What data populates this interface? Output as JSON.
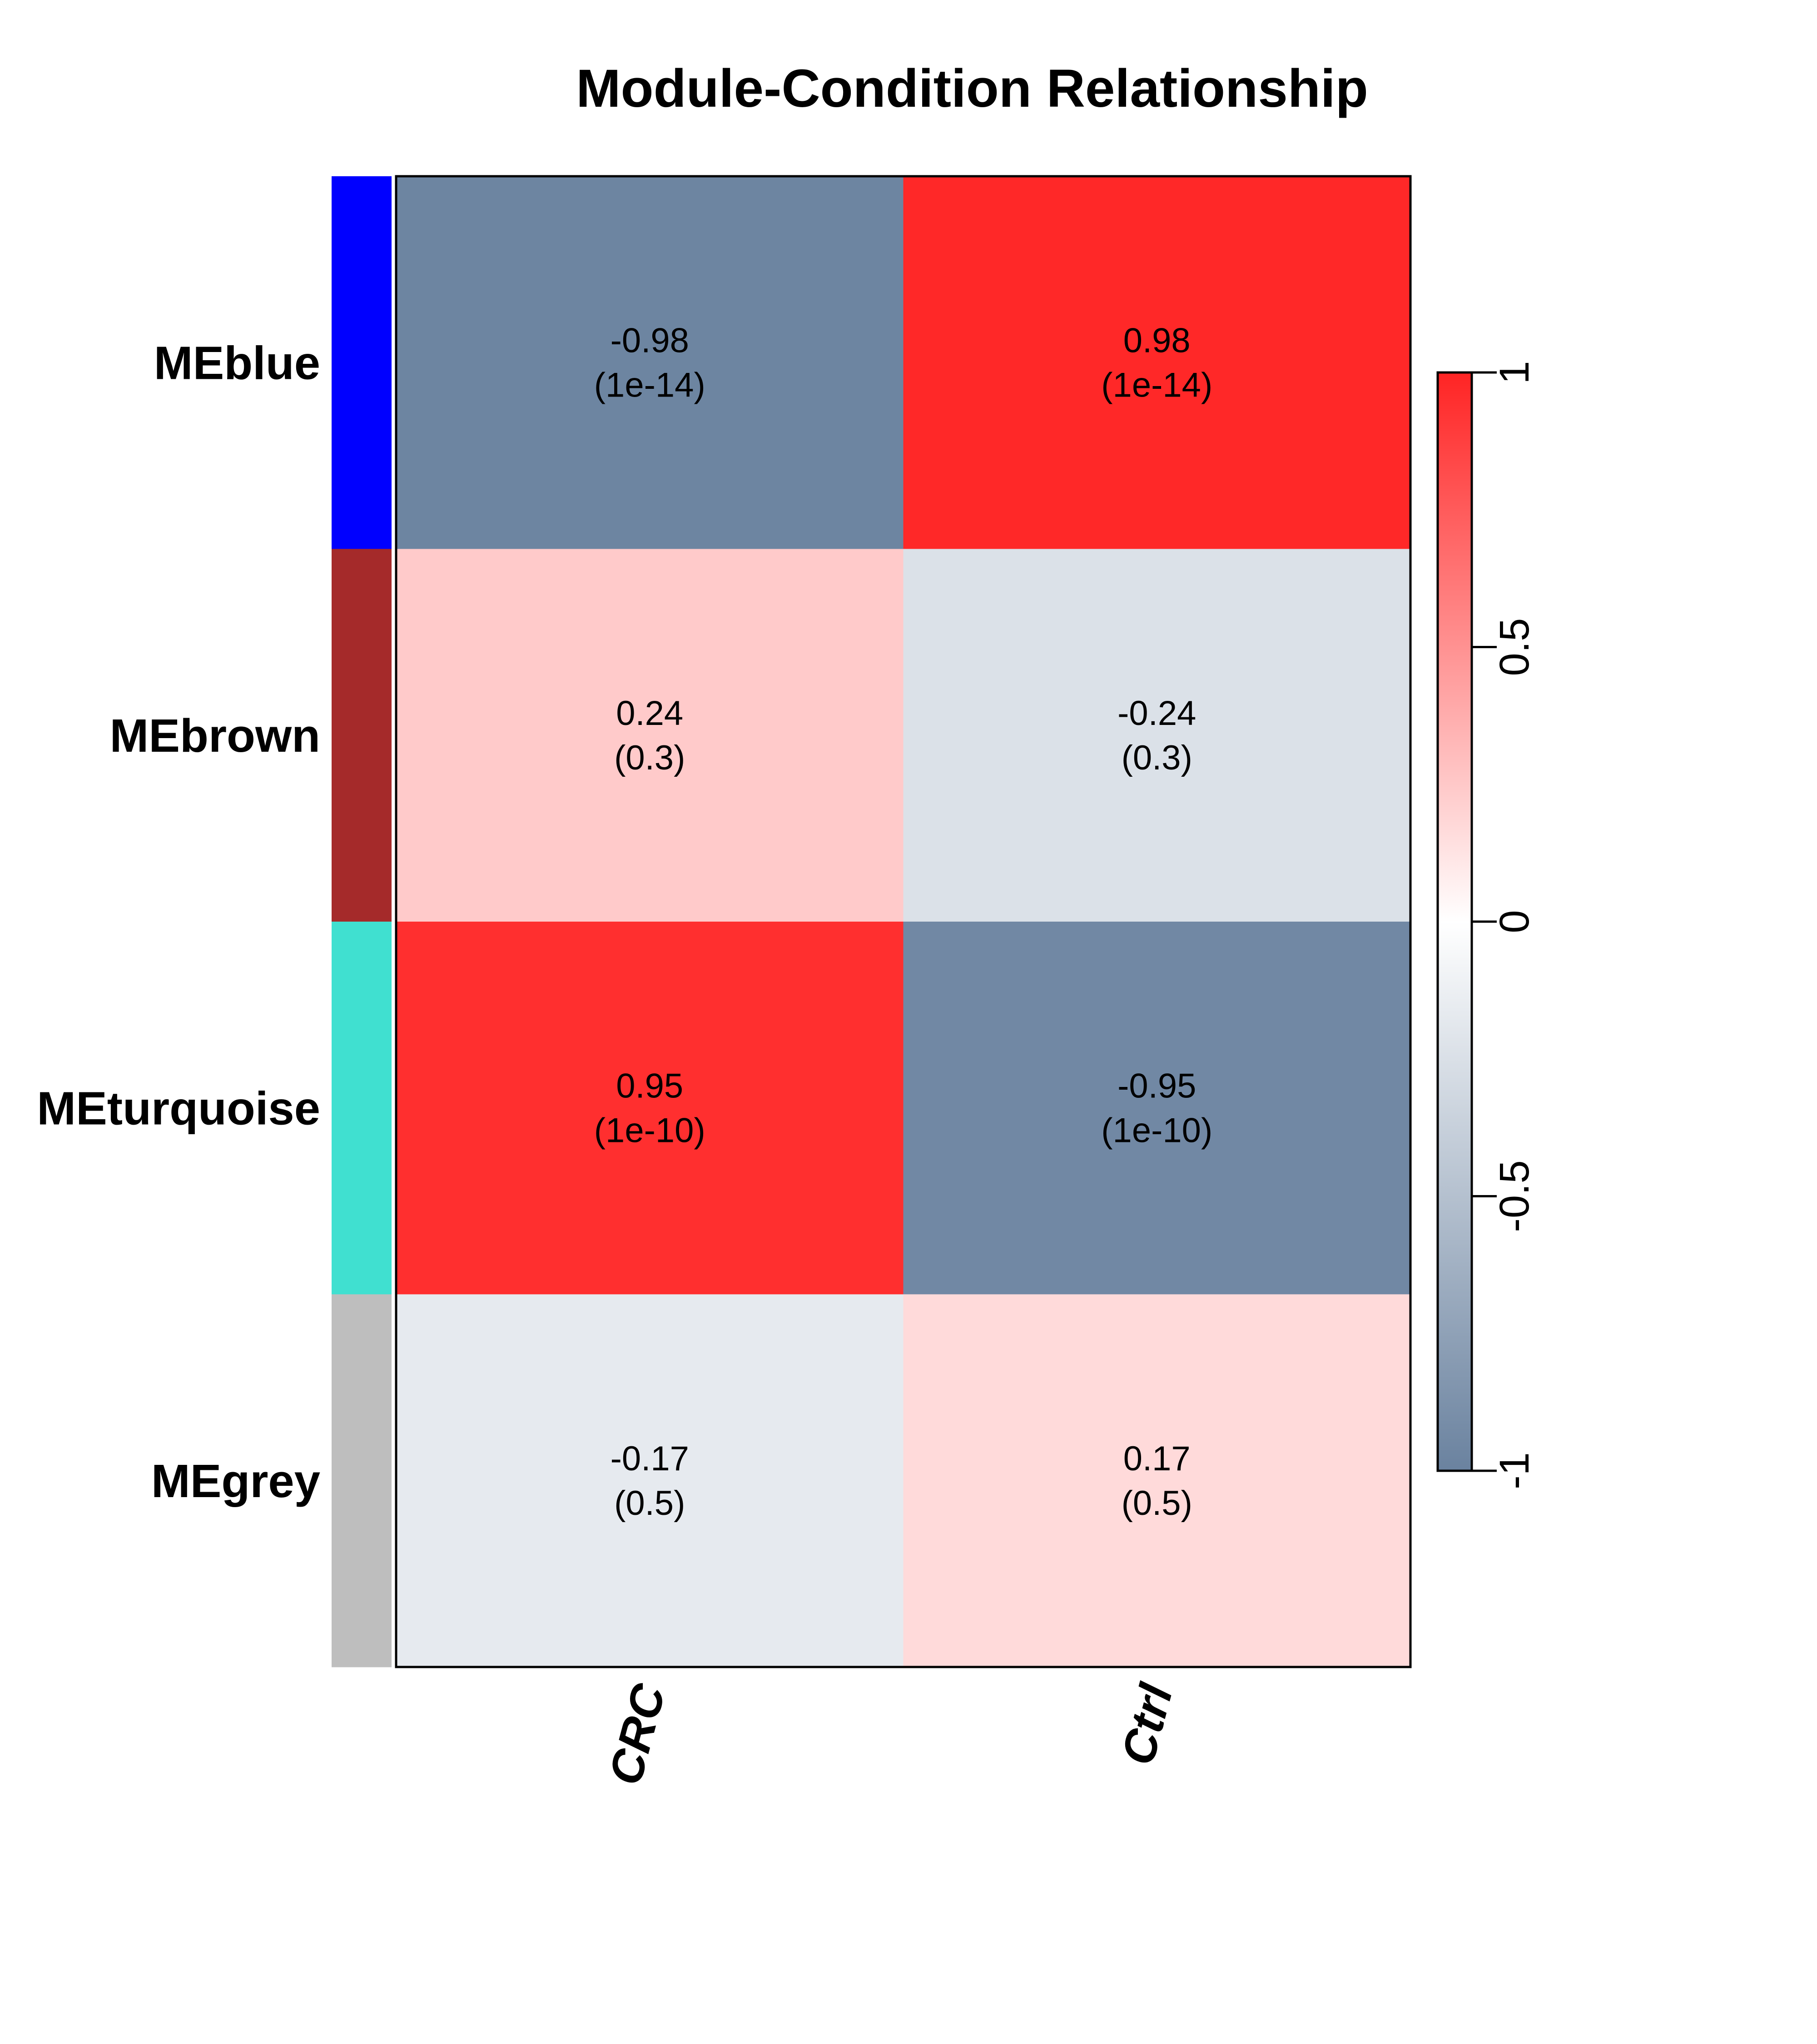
{
  "chart_data": {
    "type": "heatmap",
    "title": "Module-Condition Relationship",
    "rows": [
      "MEblue",
      "MEbrown",
      "MEturquoise",
      "MEgrey"
    ],
    "row_colors": [
      "#0000ff",
      "#a52a2a",
      "#40e0d0",
      "#bebebe"
    ],
    "columns": [
      "CRC",
      "Ctrl"
    ],
    "values": [
      [
        -0.98,
        0.98
      ],
      [
        0.24,
        -0.24
      ],
      [
        0.95,
        -0.95
      ],
      [
        -0.17,
        0.17
      ]
    ],
    "value_labels": [
      [
        "-0.98",
        "0.98"
      ],
      [
        "0.24",
        "-0.24"
      ],
      [
        "0.95",
        "-0.95"
      ],
      [
        "-0.17",
        "0.17"
      ]
    ],
    "p_labels": [
      [
        "(1e-14)",
        "(1e-14)"
      ],
      [
        "(0.3)",
        "(0.3)"
      ],
      [
        "(1e-10)",
        "(1e-10)"
      ],
      [
        "(0.5)",
        "(0.5)"
      ]
    ],
    "color_scale": {
      "low_color": "#6a829f",
      "mid_color": "#ffffff",
      "high_color": "#ff2424",
      "range": [
        -1,
        1
      ],
      "ticks": [
        -1,
        -0.5,
        0,
        0.5,
        1
      ],
      "tick_labels": [
        "-1",
        "-0.5",
        "0",
        "0.5",
        "1"
      ]
    }
  }
}
